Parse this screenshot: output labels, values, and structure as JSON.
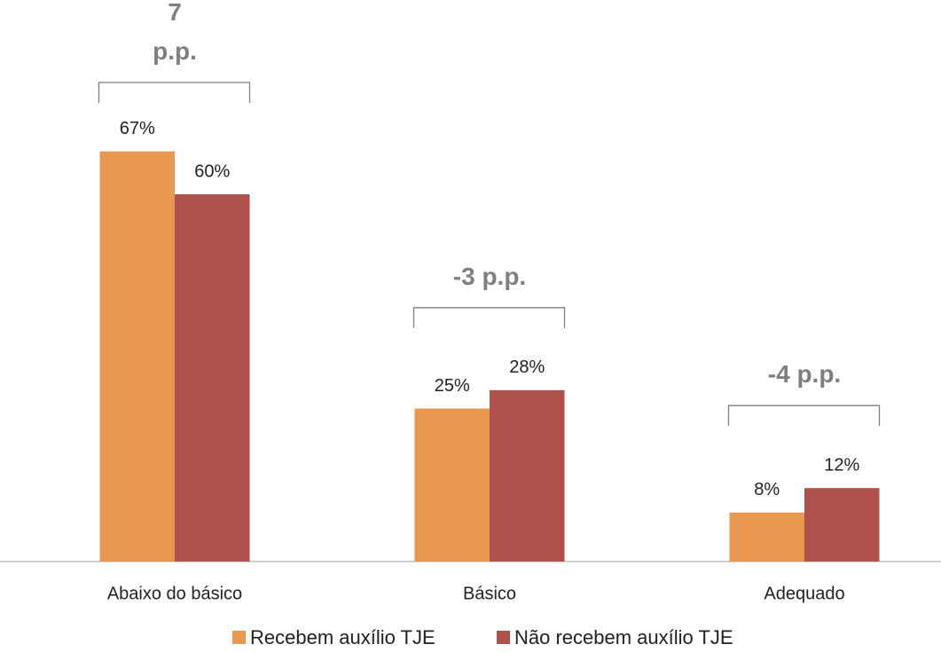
{
  "chart_data": {
    "type": "bar",
    "categories": [
      "Abaixo do básico",
      "Básico",
      "Adequado"
    ],
    "series": [
      {
        "name": "Recebem auxílio TJE",
        "color": "#e8994f",
        "values": [
          67,
          25,
          8
        ],
        "value_labels": [
          "67%",
          "25%",
          "8%"
        ]
      },
      {
        "name": "Não recebem auxílio TJE",
        "color": "#b0514c",
        "values": [
          60,
          28,
          12
        ],
        "value_labels": [
          "60%",
          "28%",
          "12%"
        ]
      }
    ],
    "annotations": [
      "7 p.p.",
      "-3 p.p.",
      "-4 p.p."
    ]
  }
}
